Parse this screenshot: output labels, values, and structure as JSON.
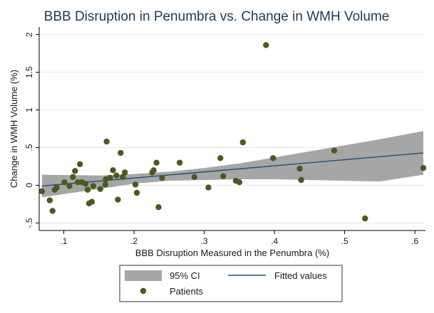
{
  "chart_data": {
    "type": "scatter",
    "title": "BBB Disruption in Penumbra vs. Change in WMH Volume",
    "xlabel": "BBB Disruption Measured in the Penumbra (%)",
    "ylabel": "Change in WMH Volume (%)",
    "xlim": [
      0.065,
      0.615
    ],
    "ylim": [
      -0.6,
      2.1
    ],
    "xticks": [
      0.1,
      0.2,
      0.3,
      0.4,
      0.5,
      0.6
    ],
    "xtick_labels": [
      ".1",
      ".2",
      ".3",
      ".4",
      ".5",
      ".6"
    ],
    "yticks": [
      -0.5,
      0,
      0.5,
      1,
      1.5,
      2
    ],
    "ytick_labels": [
      "-.5",
      "0",
      ".5",
      "1",
      "1.5",
      "2"
    ],
    "grid": "horizontal",
    "legend_position": "bottom",
    "series": [
      {
        "name": "Patients",
        "kind": "scatter",
        "color": "#4a5a1e",
        "points": [
          [
            0.069,
            -0.08
          ],
          [
            0.08,
            -0.2
          ],
          [
            0.084,
            -0.34
          ],
          [
            0.087,
            -0.06
          ],
          [
            0.09,
            -0.03
          ],
          [
            0.101,
            0.04
          ],
          [
            0.108,
            -0.01
          ],
          [
            0.113,
            0.11
          ],
          [
            0.116,
            0.19
          ],
          [
            0.12,
            0.04
          ],
          [
            0.123,
            0.28
          ],
          [
            0.126,
            0.04
          ],
          [
            0.131,
            0.02
          ],
          [
            0.134,
            -0.06
          ],
          [
            0.136,
            -0.24
          ],
          [
            0.14,
            -0.22
          ],
          [
            0.142,
            -0.01
          ],
          [
            0.152,
            -0.05
          ],
          [
            0.159,
            0.01
          ],
          [
            0.16,
            0.08
          ],
          [
            0.161,
            0.58
          ],
          [
            0.166,
            0.1
          ],
          [
            0.17,
            0.2
          ],
          [
            0.175,
            0.13
          ],
          [
            0.177,
            -0.19
          ],
          [
            0.181,
            0.43
          ],
          [
            0.184,
            0.11
          ],
          [
            0.187,
            0.17
          ],
          [
            0.202,
            0.01
          ],
          [
            0.204,
            -0.1
          ],
          [
            0.226,
            0.17
          ],
          [
            0.228,
            0.2
          ],
          [
            0.232,
            0.3
          ],
          [
            0.235,
            -0.29
          ],
          [
            0.24,
            0.1
          ],
          [
            0.265,
            0.3
          ],
          [
            0.286,
            0.11
          ],
          [
            0.306,
            -0.03
          ],
          [
            0.323,
            0.36
          ],
          [
            0.327,
            0.12
          ],
          [
            0.345,
            0.06
          ],
          [
            0.35,
            0.04
          ],
          [
            0.355,
            0.57
          ],
          [
            0.388,
            1.86
          ],
          [
            0.398,
            0.36
          ],
          [
            0.436,
            0.22
          ],
          [
            0.438,
            0.07
          ],
          [
            0.485,
            0.46
          ],
          [
            0.529,
            -0.44
          ],
          [
            0.612,
            0.23
          ]
        ]
      },
      {
        "name": "Fitted values",
        "kind": "line",
        "color": "#1f4e79",
        "points": [
          [
            0.069,
            -0.01
          ],
          [
            0.612,
            0.43
          ]
        ]
      },
      {
        "name": "95% CI",
        "kind": "band",
        "color": "#a6a6a6",
        "x": [
          0.069,
          0.15,
          0.2,
          0.25,
          0.3,
          0.35,
          0.4,
          0.45,
          0.5,
          0.55,
          0.612
        ],
        "upper": [
          0.14,
          0.13,
          0.15,
          0.18,
          0.23,
          0.29,
          0.37,
          0.45,
          0.53,
          0.61,
          0.72
        ],
        "lower": [
          -0.16,
          -0.05,
          0.02,
          0.06,
          0.07,
          0.08,
          0.08,
          0.07,
          0.06,
          0.05,
          0.14
        ]
      }
    ]
  },
  "legend": {
    "ci_label": "95% CI",
    "fitted_label": "Fitted values",
    "patients_label": "Patients"
  }
}
